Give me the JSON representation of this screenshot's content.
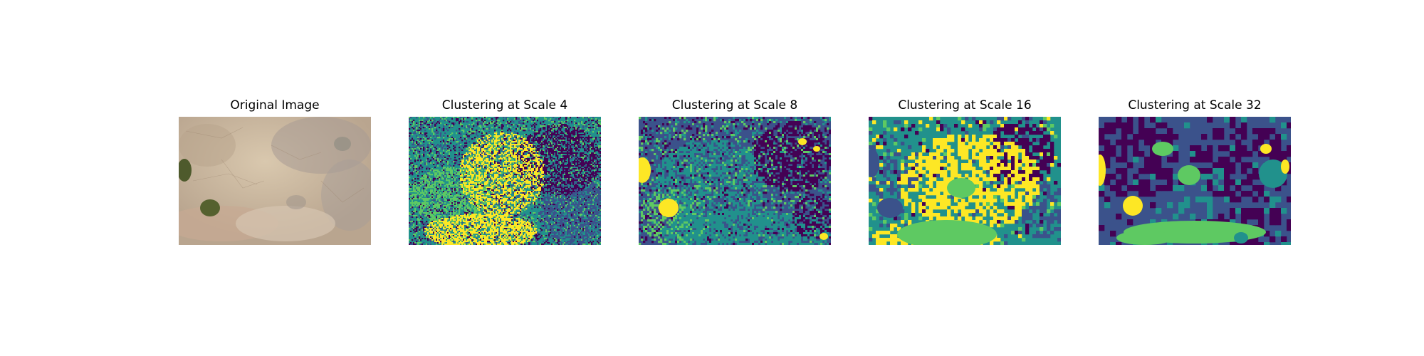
{
  "panels": [
    {
      "title": "Original Image",
      "kind": "photo"
    },
    {
      "title": "Clustering at Scale 4",
      "kind": "clusters"
    },
    {
      "title": "Clustering at Scale 8",
      "kind": "clusters"
    },
    {
      "title": "Clustering at Scale 16",
      "kind": "clusters"
    },
    {
      "title": "Clustering at Scale 32",
      "kind": "clusters"
    }
  ],
  "palette": {
    "cluster_0": "#440154",
    "cluster_1": "#3b528b",
    "cluster_2": "#21918c",
    "cluster_3": "#5ec962",
    "cluster_4": "#fde725",
    "photo_ground": "#c9b7a0",
    "photo_vegetation": "#4e5a2c"
  }
}
